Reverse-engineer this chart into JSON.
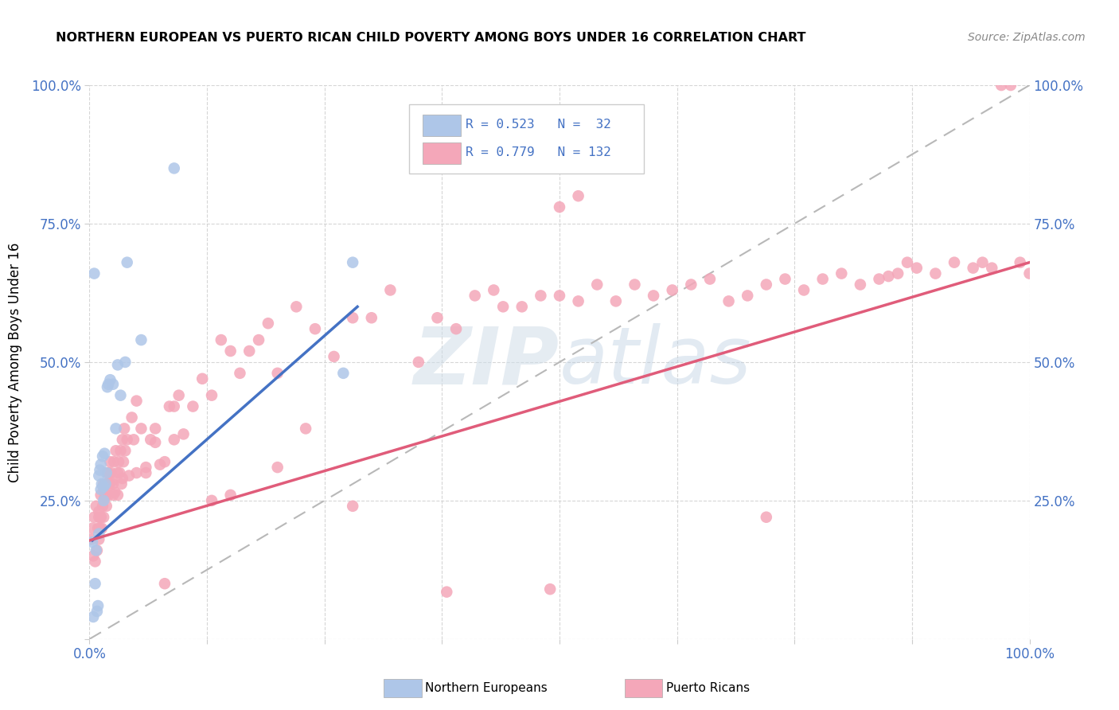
{
  "title": "NORTHERN EUROPEAN VS PUERTO RICAN CHILD POVERTY AMONG BOYS UNDER 16 CORRELATION CHART",
  "source": "Source: ZipAtlas.com",
  "ylabel": "Child Poverty Among Boys Under 16",
  "xlim": [
    0,
    1.0
  ],
  "ylim": [
    0,
    1.0
  ],
  "xticklabels": [
    "0.0%",
    "",
    "",
    "",
    "",
    "",
    "",
    "",
    "",
    "100.0%"
  ],
  "yticklabels_left": [
    "",
    "25.0%",
    "50.0%",
    "75.0%",
    "100.0%"
  ],
  "yticklabels_right": [
    "25.0%",
    "50.0%",
    "75.0%",
    "100.0%"
  ],
  "color_ne": "#aec6e8",
  "color_pr": "#f4a7b9",
  "color_ne_line": "#4472c4",
  "color_pr_line": "#e05c7a",
  "color_diag_line": "#b8b8b8",
  "color_tick_label": "#4472c4",
  "color_grid": "#cccccc",
  "background_color": "#ffffff",
  "ne_x": [
    0.003,
    0.004,
    0.005,
    0.006,
    0.007,
    0.008,
    0.009,
    0.01,
    0.01,
    0.011,
    0.012,
    0.012,
    0.013,
    0.014,
    0.015,
    0.015,
    0.016,
    0.017,
    0.018,
    0.019,
    0.02,
    0.022,
    0.025,
    0.028,
    0.03,
    0.033,
    0.038,
    0.04,
    0.055,
    0.09,
    0.27,
    0.28
  ],
  "ne_y": [
    0.175,
    0.04,
    0.66,
    0.1,
    0.16,
    0.05,
    0.06,
    0.19,
    0.295,
    0.305,
    0.27,
    0.315,
    0.28,
    0.33,
    0.275,
    0.25,
    0.335,
    0.28,
    0.3,
    0.455,
    0.46,
    0.468,
    0.46,
    0.38,
    0.495,
    0.44,
    0.5,
    0.68,
    0.54,
    0.85,
    0.48,
    0.68
  ],
  "pr_x": [
    0.002,
    0.003,
    0.004,
    0.005,
    0.006,
    0.007,
    0.008,
    0.009,
    0.01,
    0.01,
    0.011,
    0.012,
    0.012,
    0.013,
    0.014,
    0.015,
    0.015,
    0.016,
    0.017,
    0.018,
    0.018,
    0.019,
    0.02,
    0.021,
    0.022,
    0.023,
    0.024,
    0.025,
    0.026,
    0.027,
    0.028,
    0.03,
    0.031,
    0.032,
    0.033,
    0.034,
    0.035,
    0.036,
    0.037,
    0.038,
    0.04,
    0.042,
    0.045,
    0.047,
    0.05,
    0.055,
    0.06,
    0.065,
    0.07,
    0.075,
    0.08,
    0.085,
    0.09,
    0.095,
    0.1,
    0.11,
    0.12,
    0.13,
    0.14,
    0.15,
    0.16,
    0.17,
    0.18,
    0.19,
    0.2,
    0.22,
    0.24,
    0.26,
    0.28,
    0.3,
    0.32,
    0.35,
    0.37,
    0.39,
    0.41,
    0.43,
    0.44,
    0.46,
    0.48,
    0.5,
    0.52,
    0.54,
    0.56,
    0.58,
    0.6,
    0.62,
    0.64,
    0.66,
    0.68,
    0.7,
    0.72,
    0.74,
    0.76,
    0.78,
    0.8,
    0.82,
    0.84,
    0.85,
    0.86,
    0.87,
    0.88,
    0.9,
    0.92,
    0.94,
    0.95,
    0.96,
    0.97,
    0.98,
    0.99,
    1.0,
    0.5,
    0.52,
    0.38,
    0.49,
    0.72,
    0.28,
    0.13,
    0.15,
    0.2,
    0.23,
    0.05,
    0.06,
    0.07,
    0.08,
    0.09,
    0.03,
    0.035,
    0.025,
    0.02,
    0.015,
    0.01,
    0.012
  ],
  "pr_y": [
    0.18,
    0.2,
    0.15,
    0.22,
    0.14,
    0.24,
    0.16,
    0.2,
    0.18,
    0.22,
    0.2,
    0.22,
    0.26,
    0.2,
    0.24,
    0.28,
    0.22,
    0.255,
    0.26,
    0.24,
    0.28,
    0.3,
    0.26,
    0.28,
    0.32,
    0.3,
    0.285,
    0.28,
    0.32,
    0.265,
    0.34,
    0.3,
    0.32,
    0.3,
    0.34,
    0.28,
    0.36,
    0.32,
    0.38,
    0.34,
    0.36,
    0.295,
    0.4,
    0.36,
    0.3,
    0.38,
    0.31,
    0.36,
    0.355,
    0.315,
    0.1,
    0.42,
    0.36,
    0.44,
    0.37,
    0.42,
    0.47,
    0.44,
    0.54,
    0.52,
    0.48,
    0.52,
    0.54,
    0.57,
    0.48,
    0.6,
    0.56,
    0.51,
    0.58,
    0.58,
    0.63,
    0.5,
    0.58,
    0.56,
    0.62,
    0.63,
    0.6,
    0.6,
    0.62,
    0.62,
    0.61,
    0.64,
    0.61,
    0.64,
    0.62,
    0.63,
    0.64,
    0.65,
    0.61,
    0.62,
    0.64,
    0.65,
    0.63,
    0.65,
    0.66,
    0.64,
    0.65,
    0.655,
    0.66,
    0.68,
    0.67,
    0.66,
    0.68,
    0.67,
    0.68,
    0.67,
    1.0,
    1.0,
    0.68,
    0.66,
    0.78,
    0.8,
    0.085,
    0.09,
    0.22,
    0.24,
    0.25,
    0.26,
    0.31,
    0.38,
    0.43,
    0.3,
    0.38,
    0.32,
    0.42,
    0.26,
    0.29,
    0.26,
    0.3,
    0.27,
    0.23,
    0.22
  ],
  "ne_line_x": [
    0.003,
    0.285
  ],
  "ne_line_y": [
    0.178,
    0.6
  ],
  "pr_line_x": [
    0.0,
    1.0
  ],
  "pr_line_y": [
    0.178,
    0.68
  ]
}
